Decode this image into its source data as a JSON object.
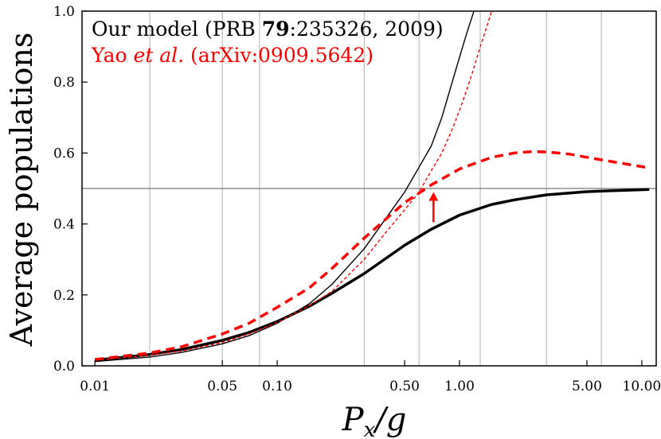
{
  "chart_data": {
    "type": "line",
    "xlabel": "P_x/g",
    "xlabel_parts": {
      "main": "P",
      "sub": "x",
      "rest": "/g"
    },
    "ylabel": "Average populations",
    "xscale": "log",
    "xlim": [
      0.0085,
      12
    ],
    "ylim": [
      0,
      1.0
    ],
    "x_ticks": [
      {
        "value": 0.01,
        "label": "0.01"
      },
      {
        "value": 0.05,
        "label": "0.05"
      },
      {
        "value": 0.1,
        "label": "0.10"
      },
      {
        "value": 0.5,
        "label": "0.50"
      },
      {
        "value": 1.0,
        "label": "1.00"
      },
      {
        "value": 5.0,
        "label": "5.00"
      },
      {
        "value": 10.0,
        "label": "10.00"
      }
    ],
    "y_ticks": [
      {
        "value": 0.0,
        "label": "0.0"
      },
      {
        "value": 0.2,
        "label": "0.2"
      },
      {
        "value": 0.4,
        "label": "0.4"
      },
      {
        "value": 0.6,
        "label": "0.6"
      },
      {
        "value": 0.8,
        "label": "0.8"
      },
      {
        "value": 1.0,
        "label": "1.0"
      }
    ],
    "grid_x": [
      0.02,
      0.05,
      0.08,
      0.3,
      0.6,
      1.3,
      3.0,
      6.0
    ],
    "hline": 0.5,
    "arrow": {
      "x": 0.72,
      "y_from": 0.405,
      "y_to": 0.49,
      "color": "#ff0000"
    },
    "legend": {
      "placement": "top-left",
      "entries": [
        {
          "parts": [
            {
              "text": "Our model (PRB "
            },
            {
              "text": "79",
              "bold": true
            },
            {
              "text": ":235326, 2009)"
            }
          ],
          "color": "#000000"
        },
        {
          "parts": [
            {
              "text": "Yao "
            },
            {
              "text": "et al.",
              "italic": true
            },
            {
              "text": " (arXiv:0909.5642)"
            }
          ],
          "color": "#ff0000"
        }
      ]
    },
    "series": [
      {
        "style": "thick-solid",
        "color": "#000000",
        "x": [
          0.01,
          0.02,
          0.03,
          0.05,
          0.07,
          0.1,
          0.15,
          0.2,
          0.3,
          0.5,
          0.7,
          1.0,
          1.5,
          2.0,
          3.0,
          5.0,
          7.0,
          11.0
        ],
        "y": [
          0.016,
          0.032,
          0.046,
          0.072,
          0.094,
          0.125,
          0.168,
          0.205,
          0.26,
          0.34,
          0.385,
          0.425,
          0.455,
          0.468,
          0.482,
          0.491,
          0.494,
          0.497
        ]
      },
      {
        "style": "thin-solid",
        "color": "#000000",
        "x": [
          0.01,
          0.02,
          0.03,
          0.05,
          0.07,
          0.1,
          0.15,
          0.2,
          0.3,
          0.4,
          0.5,
          0.6,
          0.7,
          0.8,
          0.9,
          1.0,
          1.1,
          1.2
        ],
        "y": [
          0.012,
          0.025,
          0.038,
          0.062,
          0.085,
          0.12,
          0.175,
          0.23,
          0.33,
          0.42,
          0.49,
          0.56,
          0.62,
          0.7,
          0.79,
          0.87,
          0.94,
          1.0
        ]
      },
      {
        "style": "thick-dashed",
        "color": "#ff0000",
        "x": [
          0.01,
          0.02,
          0.03,
          0.05,
          0.07,
          0.1,
          0.15,
          0.2,
          0.3,
          0.5,
          0.7,
          1.0,
          1.5,
          2.0,
          2.5,
          3.0,
          4.0,
          5.0,
          7.0,
          11.0
        ],
        "y": [
          0.018,
          0.036,
          0.054,
          0.09,
          0.12,
          0.165,
          0.22,
          0.275,
          0.36,
          0.46,
          0.51,
          0.555,
          0.588,
          0.6,
          0.604,
          0.603,
          0.597,
          0.588,
          0.575,
          0.558
        ]
      },
      {
        "style": "thin-dashed",
        "color": "#ff0000",
        "x": [
          0.01,
          0.02,
          0.03,
          0.05,
          0.07,
          0.1,
          0.15,
          0.2,
          0.3,
          0.4,
          0.5,
          0.6,
          0.7,
          0.8,
          0.9,
          1.0,
          1.1,
          1.2,
          1.3,
          1.4,
          1.5
        ],
        "y": [
          0.016,
          0.03,
          0.042,
          0.066,
          0.09,
          0.122,
          0.17,
          0.21,
          0.3,
          0.38,
          0.44,
          0.49,
          0.55,
          0.6,
          0.66,
          0.72,
          0.78,
          0.84,
          0.9,
          0.95,
          1.0
        ]
      }
    ]
  }
}
